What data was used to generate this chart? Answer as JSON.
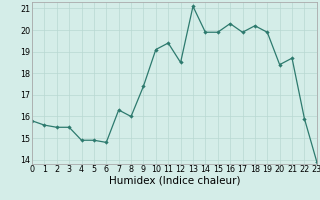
{
  "x": [
    0,
    1,
    2,
    3,
    4,
    5,
    6,
    7,
    8,
    9,
    10,
    11,
    12,
    13,
    14,
    15,
    16,
    17,
    18,
    19,
    20,
    21,
    22,
    23
  ],
  "y": [
    15.8,
    15.6,
    15.5,
    15.5,
    14.9,
    14.9,
    14.8,
    16.3,
    16.0,
    17.4,
    19.1,
    19.4,
    18.5,
    21.1,
    19.9,
    19.9,
    20.3,
    19.9,
    20.2,
    19.9,
    18.4,
    18.7,
    15.9,
    13.9
  ],
  "xlabel": "Humidex (Indice chaleur)",
  "xlim": [
    0,
    23
  ],
  "ylim": [
    13.8,
    21.3
  ],
  "yticks": [
    14,
    15,
    16,
    17,
    18,
    19,
    20,
    21
  ],
  "xticks": [
    0,
    1,
    2,
    3,
    4,
    5,
    6,
    7,
    8,
    9,
    10,
    11,
    12,
    13,
    14,
    15,
    16,
    17,
    18,
    19,
    20,
    21,
    22,
    23
  ],
  "line_color": "#2d7a6e",
  "marker_color": "#2d7a6e",
  "bg_color": "#d4ede8",
  "grid_color": "#b8d8d2",
  "figure_bg": "#d4ede8",
  "xlabel_fontsize": 7.5,
  "tick_fontsize": 5.8
}
